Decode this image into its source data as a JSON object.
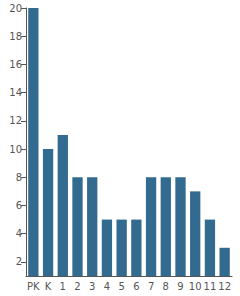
{
  "chart_data": {
    "type": "bar",
    "categories": [
      "PK",
      "K",
      "1",
      "2",
      "3",
      "4",
      "5",
      "6",
      "7",
      "8",
      "9",
      "10",
      "11",
      "12"
    ],
    "values": [
      20,
      10,
      11,
      8,
      8,
      5,
      5,
      5,
      8,
      8,
      8,
      7,
      5,
      3
    ],
    "color": "#336a90",
    "ylim": [
      1,
      20
    ],
    "yticks": [
      2,
      4,
      6,
      8,
      10,
      12,
      14,
      16,
      18,
      20
    ],
    "grid": false
  }
}
